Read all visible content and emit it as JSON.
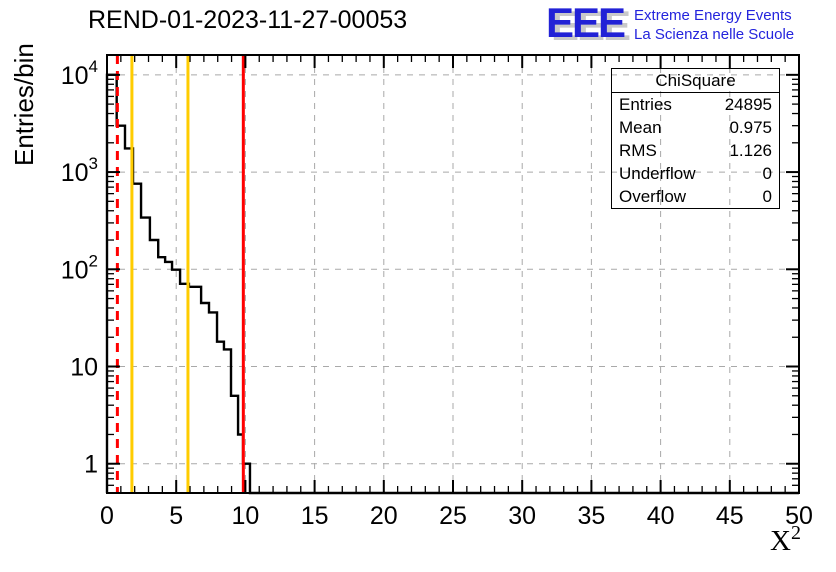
{
  "header": {
    "title": "REND-01-2023-11-27-00053"
  },
  "logo": {
    "acronym": "EEE",
    "line1": "Extreme Energy Events",
    "line2": "La Scienza nelle Scuole",
    "blue": "#2222d6",
    "shadow": "#c9c9c9"
  },
  "stats": {
    "title": "ChiSquare",
    "rows": [
      {
        "label": "Entries",
        "value": "24895"
      },
      {
        "label": "Mean",
        "value": "0.975"
      },
      {
        "label": "RMS",
        "value": "1.126"
      },
      {
        "label": "Underflow",
        "value": "0"
      },
      {
        "label": "Overflow",
        "value": "0"
      }
    ]
  },
  "chart_data": {
    "type": "bar",
    "subtype": "histogram-step-logy",
    "title": "REND-01-2023-11-27-00053",
    "ylabel": "Entries/bin",
    "xlabel": {
      "base": "X",
      "sup": "2"
    },
    "xlim": [
      0,
      50
    ],
    "ylim": [
      0.5,
      16000
    ],
    "ylog": true,
    "grid": true,
    "x_major_ticks": [
      0,
      5,
      10,
      15,
      20,
      25,
      30,
      35,
      40,
      45,
      50
    ],
    "x_minor_step": 1,
    "grid_x": [
      5,
      10,
      15,
      20,
      25,
      30,
      35,
      40,
      45,
      50
    ],
    "grid_y": [
      1,
      10,
      100,
      1000,
      10000
    ],
    "y_decade_labels": [
      {
        "v": 1,
        "base": "1"
      },
      {
        "v": 10,
        "base": "10"
      },
      {
        "v": 100,
        "base": "10",
        "sup": "2"
      },
      {
        "v": 1000,
        "base": "10",
        "sup": "3"
      },
      {
        "v": 10000,
        "base": "10",
        "sup": "4"
      }
    ],
    "steps": [
      [
        0.0,
        0.7,
        10000
      ],
      [
        0.7,
        1.3,
        3000
      ],
      [
        1.3,
        1.88,
        1750
      ],
      [
        1.88,
        2.46,
        760
      ],
      [
        2.46,
        3.1,
        340
      ],
      [
        3.1,
        3.7,
        200
      ],
      [
        3.7,
        4.2,
        133
      ],
      [
        4.2,
        4.7,
        119
      ],
      [
        4.7,
        5.28,
        99
      ],
      [
        5.28,
        5.92,
        71
      ],
      [
        5.92,
        6.8,
        66
      ],
      [
        6.8,
        7.37,
        45
      ],
      [
        7.37,
        7.95,
        36
      ],
      [
        7.95,
        8.45,
        18
      ],
      [
        8.45,
        8.96,
        15
      ],
      [
        8.96,
        9.47,
        5
      ],
      [
        9.47,
        9.83,
        2
      ],
      [
        9.83,
        10.33,
        1
      ]
    ],
    "threshold_lines": [
      {
        "x": 0.75,
        "color": "#ff0000",
        "style": "dashed"
      },
      {
        "x": 1.8,
        "color": "#ffcc00",
        "style": "solid"
      },
      {
        "x": 5.85,
        "color": "#ffcc00",
        "style": "solid"
      },
      {
        "x": 9.85,
        "color": "#ff0000",
        "style": "solid"
      }
    ],
    "colors": {
      "histogram": "#000000",
      "frame": "#000000",
      "grid": "#a9a9a9",
      "red": "#ff0000",
      "yellow": "#ffcc00"
    }
  }
}
